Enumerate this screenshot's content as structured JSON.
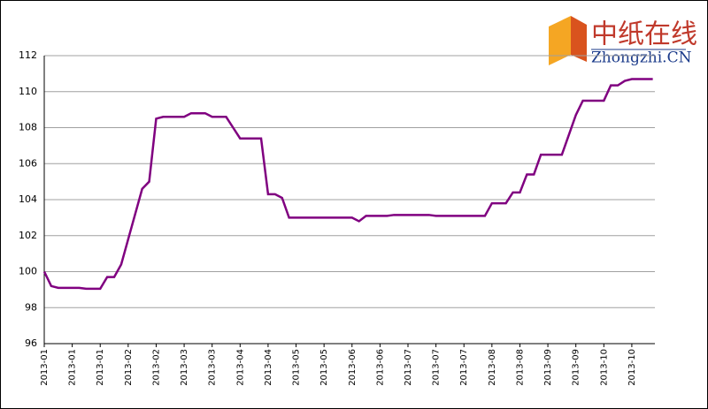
{
  "chart_data": {
    "type": "line",
    "categories": [
      "2013-01",
      null,
      null,
      null,
      "2013-01",
      null,
      null,
      null,
      "2013-01",
      null,
      null,
      null,
      "2013-02",
      null,
      null,
      null,
      "2013-02",
      null,
      null,
      null,
      "2013-03",
      null,
      null,
      null,
      "2013-03",
      null,
      null,
      null,
      "2013-04",
      null,
      null,
      null,
      "2013-04",
      null,
      null,
      null,
      "2013-05",
      null,
      null,
      null,
      "2013-05",
      null,
      null,
      null,
      "2013-06",
      null,
      null,
      null,
      "2013-06",
      null,
      null,
      null,
      "2013-07",
      null,
      null,
      null,
      "2013-07",
      null,
      null,
      null,
      "2013-07",
      null,
      null,
      null,
      "2013-08",
      null,
      null,
      null,
      "2013-08",
      null,
      null,
      null,
      "2013-09",
      null,
      null,
      null,
      "2013-09",
      null,
      null,
      null,
      "2013-10",
      null,
      null,
      null,
      "2013-10",
      null,
      null,
      null
    ],
    "series": [
      {
        "color": "#800080",
        "values": [
          100.0,
          99.2,
          99.1,
          99.1,
          99.1,
          99.1,
          99.05,
          99.05,
          99.05,
          99.7,
          99.7,
          100.4,
          101.8,
          103.2,
          104.6,
          105.0,
          108.5,
          108.6,
          108.6,
          108.6,
          108.6,
          108.8,
          108.8,
          108.8,
          108.6,
          108.6,
          108.6,
          108.0,
          107.4,
          107.4,
          107.4,
          107.4,
          104.3,
          104.3,
          104.1,
          103.0,
          103.0,
          103.0,
          103.0,
          103.0,
          103.0,
          103.0,
          103.0,
          103.0,
          103.0,
          102.8,
          103.1,
          103.1,
          103.1,
          103.1,
          103.15,
          103.15,
          103.15,
          103.15,
          103.15,
          103.15,
          103.1,
          103.1,
          103.1,
          103.1,
          103.1,
          103.1,
          103.1,
          103.1,
          103.8,
          103.8,
          103.8,
          104.4,
          104.4,
          105.4,
          105.4,
          106.5,
          106.5,
          106.5,
          106.5,
          107.6,
          108.7,
          109.5,
          109.5,
          109.5,
          109.5,
          110.35,
          110.35,
          110.6,
          110.7,
          110.7,
          110.7,
          110.7
        ]
      }
    ],
    "ylim": [
      96,
      112
    ],
    "yticks": [
      96,
      98,
      100,
      102,
      104,
      106,
      108,
      110,
      112
    ],
    "grid": true
  },
  "logo": {
    "name": "中纸在线",
    "site": "Zhongzhi.CN"
  }
}
